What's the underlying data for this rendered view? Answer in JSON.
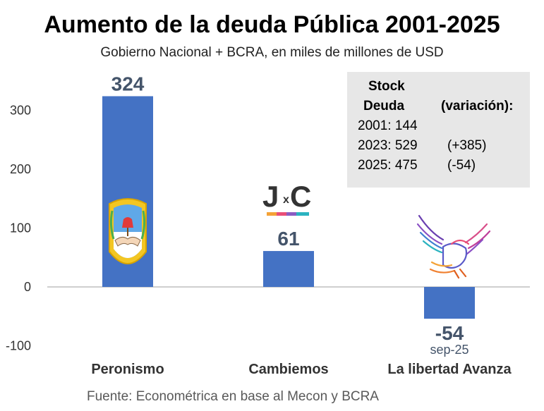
{
  "header": {
    "title": "Aumento de la deuda Pública 2001-2025",
    "subtitle": "Gobierno Nacional + BCRA, en miles de millones de USD"
  },
  "stock_box": {
    "header_line1": "Stock",
    "header_line2": "Deuda",
    "header_variation": "(variación):",
    "rows": [
      {
        "label": "2001: 144",
        "change": ""
      },
      {
        "label": "2023: 529",
        "change": "(+385)"
      },
      {
        "label": "2025: 475",
        "change": "(-54)"
      }
    ]
  },
  "footer": {
    "source": "Fuente: Econométrica en base al Mecon y BCRA"
  },
  "logos": {
    "jxc_text_left": "J",
    "jxc_text_x": "x",
    "jxc_text_right": "C"
  },
  "colors": {
    "bar": "#4472c4",
    "data_label": "#44546a",
    "box_bg": "#e7e7e7"
  },
  "chart_data": {
    "type": "bar",
    "categories": [
      "Peronismo",
      "Cambiemos",
      "La libertad Avanza"
    ],
    "values": [
      324,
      61,
      -54
    ],
    "data_labels": [
      "324",
      "61",
      "-54"
    ],
    "extra_label": {
      "category": "La libertad Avanza",
      "text": "sep-25"
    },
    "y_ticks": [
      -100,
      0,
      100,
      200,
      300
    ],
    "ylim": [
      -100,
      330
    ],
    "grid": false
  }
}
